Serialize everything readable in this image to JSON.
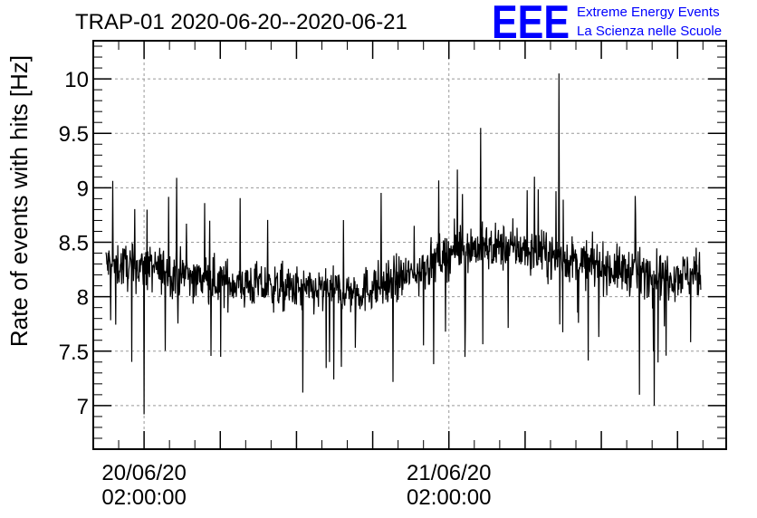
{
  "chart_data": {
    "type": "line",
    "title": "TRAP-01 2020-06-20--2020-06-21",
    "xlabel": "",
    "ylabel": "Rate of events with hits [Hz]",
    "ylim": [
      6.6,
      10.35
    ],
    "yticks": [
      {
        "value": 7,
        "label": "7"
      },
      {
        "value": 7.5,
        "label": "7.5"
      },
      {
        "value": 8,
        "label": "8"
      },
      {
        "value": 8.5,
        "label": "8.5"
      },
      {
        "value": 9,
        "label": "9"
      },
      {
        "value": 9.5,
        "label": "9.5"
      },
      {
        "value": 10,
        "label": "10"
      }
    ],
    "xlim": [
      "2020-06-19 22:00",
      "2020-06-21 23:50"
    ],
    "xticks": [
      {
        "value": "2020-06-20 02:00",
        "label_date": "20/06/20",
        "label_time": "02:00:00"
      },
      {
        "value": "2020-06-21 02:00",
        "label_date": "21/06/20",
        "label_time": "02:00:00"
      }
    ],
    "grid": true,
    "series": [
      {
        "x_start": "2020-06-19 23:00",
        "x_end": "2020-06-21 21:50",
        "envelope_hours": [
          0,
          4,
          8,
          12,
          16,
          20,
          24,
          27,
          28,
          32,
          36,
          40,
          44,
          46
        ],
        "envelope_mean": [
          8.3,
          8.25,
          8.15,
          8.1,
          8.05,
          8.05,
          8.2,
          8.4,
          8.45,
          8.45,
          8.35,
          8.25,
          8.2,
          8.2
        ],
        "noise_amplitude": 0.42,
        "notable_points": [
          {
            "x": "2020-06-20 02:00",
            "y": 6.92
          },
          {
            "x": "2020-06-21 02:05",
            "y": 9.71
          },
          {
            "x": "2020-06-21 10:40",
            "y": 10.05
          },
          {
            "x": "2020-06-21 04:30",
            "y": 9.55
          },
          {
            "x": "2020-06-21 18:10",
            "y": 7.0
          },
          {
            "x": "2020-06-21 17:00",
            "y": 7.1
          },
          {
            "x": "2020-06-20 14:30",
            "y": 7.12
          }
        ],
        "color": "#000000"
      }
    ]
  },
  "logo": {
    "mark": "EEE",
    "line1": "Extreme Energy Events",
    "line2": "La Scienza nelle Scuole",
    "color": "#0000ff"
  }
}
